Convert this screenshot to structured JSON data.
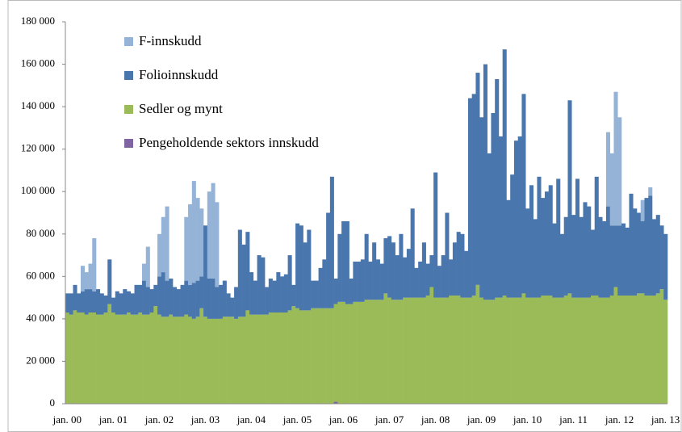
{
  "chart_data": {
    "type": "stacked_bar",
    "categories": [
      "jan. 00",
      null,
      null,
      null,
      null,
      null,
      null,
      null,
      null,
      null,
      null,
      null,
      "jan. 01",
      null,
      null,
      null,
      null,
      null,
      null,
      null,
      null,
      null,
      null,
      null,
      "jan. 02",
      null,
      null,
      null,
      null,
      null,
      null,
      null,
      null,
      null,
      null,
      null,
      "jan. 03",
      null,
      null,
      null,
      null,
      null,
      null,
      null,
      null,
      null,
      null,
      null,
      "jan. 04",
      null,
      null,
      null,
      null,
      null,
      null,
      null,
      null,
      null,
      null,
      null,
      "jan. 05",
      null,
      null,
      null,
      null,
      null,
      null,
      null,
      null,
      null,
      null,
      null,
      "jan. 06",
      null,
      null,
      null,
      null,
      null,
      null,
      null,
      null,
      null,
      null,
      null,
      "jan. 07",
      null,
      null,
      null,
      null,
      null,
      null,
      null,
      null,
      null,
      null,
      null,
      "jan. 08",
      null,
      null,
      null,
      null,
      null,
      null,
      null,
      null,
      null,
      null,
      null,
      "jan. 09",
      null,
      null,
      null,
      null,
      null,
      null,
      null,
      null,
      null,
      null,
      null,
      "jan. 10",
      null,
      null,
      null,
      null,
      null,
      null,
      null,
      null,
      null,
      null,
      null,
      "jan. 11",
      null,
      null,
      null,
      null,
      null,
      null,
      null,
      null,
      null,
      null,
      null,
      "jan. 12",
      null,
      null,
      null,
      null,
      null,
      null,
      null,
      null,
      null,
      null,
      null,
      "jan. 13"
    ],
    "series": [
      {
        "name": "F-innskudd",
        "color": "#95b3d7",
        "values": [
          0,
          0,
          0,
          0,
          12000,
          8000,
          12000,
          25000,
          0,
          0,
          0,
          0,
          0,
          0,
          0,
          0,
          0,
          0,
          0,
          0,
          8000,
          19000,
          0,
          0,
          20000,
          26000,
          35000,
          0,
          0,
          0,
          0,
          30000,
          38000,
          48000,
          39000,
          32000,
          0,
          41000,
          45000,
          40000,
          0,
          0,
          0,
          0,
          0,
          0,
          0,
          0,
          0,
          0,
          0,
          0,
          0,
          0,
          0,
          0,
          0,
          0,
          0,
          0,
          0,
          0,
          0,
          0,
          0,
          0,
          0,
          0,
          0,
          0,
          0,
          0,
          0,
          0,
          0,
          0,
          0,
          0,
          0,
          0,
          0,
          0,
          0,
          0,
          0,
          0,
          0,
          0,
          0,
          0,
          0,
          0,
          0,
          0,
          0,
          0,
          0,
          0,
          0,
          0,
          0,
          0,
          0,
          0,
          0,
          0,
          0,
          0,
          0,
          0,
          0,
          0,
          0,
          0,
          0,
          0,
          0,
          0,
          0,
          0,
          0,
          0,
          0,
          0,
          0,
          0,
          0,
          0,
          0,
          0,
          0,
          0,
          0,
          0,
          0,
          0,
          0,
          0,
          0,
          0,
          0,
          35000,
          34000,
          63000,
          51000,
          0,
          0,
          0,
          0,
          0,
          10000,
          0,
          4000,
          0,
          0,
          0,
          0
        ]
      },
      {
        "name": "Folioinnskudd",
        "color": "#4a76ae",
        "values": [
          9000,
          10000,
          12000,
          9000,
          10000,
          12000,
          11000,
          10000,
          12000,
          10000,
          8000,
          21000,
          7000,
          11000,
          10000,
          12000,
          10000,
          10000,
          14000,
          13000,
          16000,
          13000,
          11000,
          10000,
          18000,
          21000,
          17000,
          17000,
          14000,
          13000,
          15000,
          16000,
          15000,
          17000,
          17000,
          15000,
          43000,
          19000,
          19000,
          15000,
          16000,
          17000,
          11000,
          9000,
          15000,
          41000,
          34000,
          37000,
          20000,
          16000,
          28000,
          27000,
          13000,
          16000,
          15000,
          19000,
          17000,
          18000,
          26000,
          10000,
          40000,
          40000,
          32000,
          38000,
          13000,
          13000,
          19000,
          23000,
          45000,
          62000,
          12000,
          32000,
          38000,
          39000,
          12000,
          19000,
          19000,
          20000,
          31000,
          18000,
          27000,
          19000,
          17000,
          26000,
          29000,
          27000,
          21000,
          31000,
          19000,
          23000,
          42000,
          14000,
          17000,
          26000,
          15000,
          15000,
          59000,
          15000,
          20000,
          40000,
          17000,
          25000,
          30000,
          30000,
          22000,
          94000,
          95000,
          100000,
          85000,
          111000,
          69000,
          88000,
          103000,
          76000,
          116000,
          46000,
          58000,
          74000,
          76000,
          94000,
          42000,
          53000,
          37000,
          57000,
          46000,
          49000,
          52000,
          35000,
          56000,
          30000,
          37000,
          91000,
          39000,
          56000,
          38000,
          45000,
          43000,
          31000,
          56000,
          38000,
          36000,
          43000,
          33000,
          29000,
          33000,
          34000,
          32000,
          48000,
          41000,
          38000,
          34000,
          46000,
          47000,
          36000,
          37000,
          30000,
          31000
        ]
      },
      {
        "name": "Sedler og mynt",
        "color": "#9bbb59",
        "values": [
          43000,
          42000,
          44000,
          43000,
          43000,
          42000,
          43000,
          43000,
          42000,
          42000,
          43000,
          47000,
          43000,
          42000,
          42000,
          42000,
          43000,
          42000,
          42000,
          43000,
          42000,
          42000,
          43000,
          46000,
          42000,
          41000,
          41000,
          42000,
          41000,
          41000,
          41000,
          42000,
          41000,
          40000,
          41000,
          45000,
          41000,
          40000,
          40000,
          40000,
          40000,
          41000,
          41000,
          41000,
          40000,
          41000,
          41000,
          44000,
          42000,
          42000,
          42000,
          42000,
          42000,
          43000,
          43000,
          43000,
          43000,
          43000,
          44000,
          46000,
          45000,
          44000,
          44000,
          44000,
          45000,
          45000,
          45000,
          45000,
          45000,
          45000,
          46000,
          48000,
          48000,
          47000,
          47000,
          48000,
          48000,
          48000,
          49000,
          49000,
          49000,
          49000,
          49000,
          52000,
          50000,
          49000,
          49000,
          49000,
          50000,
          50000,
          50000,
          50000,
          50000,
          50000,
          51000,
          55000,
          50000,
          50000,
          50000,
          50000,
          51000,
          51000,
          51000,
          50000,
          50000,
          50000,
          51000,
          56000,
          50000,
          49000,
          49000,
          49000,
          50000,
          50000,
          51000,
          50000,
          50000,
          50000,
          50000,
          52000,
          50000,
          50000,
          50000,
          50000,
          51000,
          51000,
          51000,
          50000,
          50000,
          50000,
          51000,
          52000,
          50000,
          50000,
          50000,
          50000,
          50000,
          51000,
          51000,
          50000,
          50000,
          50000,
          51000,
          55000,
          51000,
          51000,
          51000,
          51000,
          51000,
          52000,
          52000,
          51000,
          51000,
          51000,
          52000,
          54000,
          49000
        ]
      },
      {
        "name": "Pengeholdende sektors innskudd",
        "color": "#8064a2",
        "values": [
          0,
          0,
          0,
          0,
          0,
          0,
          0,
          0,
          0,
          0,
          0,
          0,
          0,
          0,
          0,
          0,
          0,
          0,
          0,
          0,
          0,
          0,
          0,
          0,
          0,
          0,
          0,
          0,
          0,
          0,
          0,
          0,
          0,
          0,
          0,
          0,
          0,
          0,
          0,
          0,
          0,
          0,
          0,
          0,
          0,
          0,
          0,
          0,
          0,
          0,
          0,
          0,
          0,
          0,
          0,
          0,
          0,
          0,
          0,
          0,
          0,
          0,
          0,
          0,
          0,
          0,
          0,
          0,
          0,
          0,
          1000,
          0,
          0,
          0,
          0,
          0,
          0,
          0,
          0,
          0,
          0,
          0,
          0,
          0,
          0,
          0,
          0,
          0,
          0,
          0,
          0,
          0,
          0,
          0,
          0,
          0,
          0,
          0,
          0,
          0,
          0,
          0,
          0,
          0,
          0,
          0,
          0,
          0,
          0,
          0,
          0,
          0,
          0,
          0,
          0,
          0,
          0,
          0,
          0,
          0,
          0,
          0,
          0,
          0,
          0,
          0,
          0,
          0,
          0,
          0,
          0,
          0,
          0,
          0,
          0,
          0,
          0,
          0,
          0,
          0,
          0,
          0,
          0,
          0,
          0,
          0,
          0,
          0,
          0,
          0,
          0,
          0,
          0,
          0,
          0,
          0,
          0
        ]
      }
    ],
    "ylim": [
      0,
      180000
    ],
    "yticks": [
      0,
      {
        "value": 20000,
        "label": "20 000"
      },
      {
        "value": 40000,
        "label": "40 000"
      },
      {
        "value": 60000,
        "label": "60 000"
      },
      {
        "value": 80000,
        "label": "80 000"
      },
      {
        "value": 100000,
        "label": "100 000"
      },
      {
        "value": 120000,
        "label": "120 000"
      },
      {
        "value": 140000,
        "label": "140 000"
      },
      {
        "value": 160000,
        "label": "160 000"
      },
      {
        "value": 180000,
        "label": "180 000"
      }
    ],
    "grid": false,
    "legend": "upper left"
  }
}
